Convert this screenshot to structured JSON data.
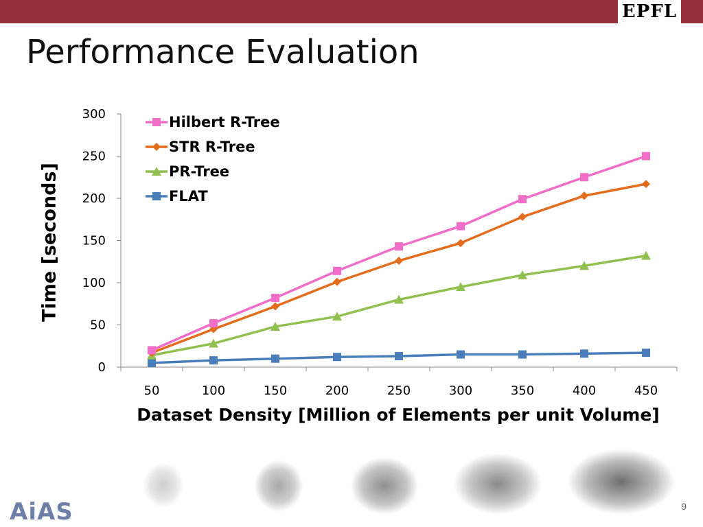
{
  "header": {
    "bar_color": "#96303a",
    "logo_text": "EPFL"
  },
  "slide": {
    "title": "Performance Evaluation",
    "page_number": "9"
  },
  "footer": {
    "logo_text": "AiAS"
  },
  "chart_data": {
    "type": "line",
    "x": [
      50,
      100,
      150,
      200,
      250,
      300,
      350,
      400,
      450
    ],
    "xlabel": "Dataset Density [Million of Elements per unit Volume]",
    "ylabel": "Time [seconds]",
    "ylim": [
      0,
      300
    ],
    "yticks": [
      0,
      50,
      100,
      150,
      200,
      250,
      300
    ],
    "grid": false,
    "legend_position": "top-left",
    "series": [
      {
        "name": "Hilbert R-Tree",
        "marker": "square",
        "color": "#f06ec8",
        "values": [
          20,
          52,
          82,
          114,
          143,
          167,
          199,
          225,
          250
        ]
      },
      {
        "name": "STR R-Tree",
        "marker": "diamond",
        "color": "#e36c1d",
        "values": [
          17,
          45,
          72,
          101,
          126,
          147,
          178,
          203,
          217
        ]
      },
      {
        "name": "PR-Tree",
        "marker": "triangle",
        "color": "#92c050",
        "values": [
          14,
          28,
          48,
          60,
          80,
          95,
          109,
          120,
          132
        ]
      },
      {
        "name": "FLAT",
        "marker": "square",
        "color": "#4a7ebb",
        "values": [
          5,
          8,
          10,
          12,
          13,
          15,
          15,
          16,
          17
        ]
      }
    ]
  }
}
